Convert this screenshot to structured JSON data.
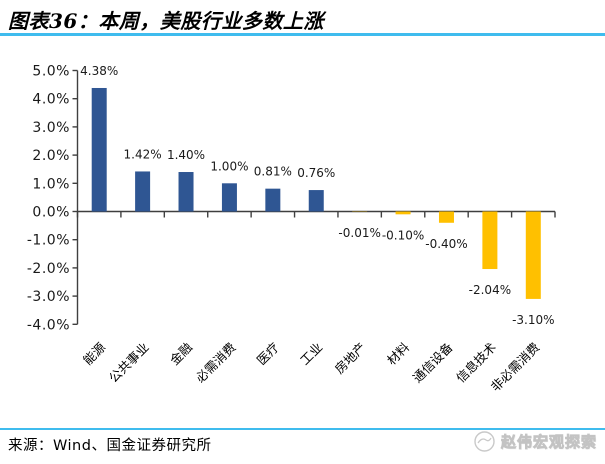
{
  "header": {
    "title": "图表36：本周，美股行业多数上涨"
  },
  "colors": {
    "positive_bar": "#2F5693",
    "negative_bar": "#FFC000",
    "rule_blue": "#3FBCEE",
    "axis": "#3f3f3f",
    "label_text": "#1a1a1a"
  },
  "chart_data": {
    "type": "bar",
    "title": "本周，美股行业多数上涨",
    "categories": [
      "能源",
      "公共事业",
      "金融",
      "必需消费",
      "医疗",
      "工业",
      "房地产",
      "材料",
      "通信设备",
      "信息技术",
      "非必需消费"
    ],
    "values": [
      4.38,
      1.42,
      1.4,
      1.0,
      0.81,
      0.76,
      -0.01,
      -0.1,
      -0.4,
      -2.04,
      -3.1
    ],
    "value_labels": [
      "4.38%",
      "1.42%",
      "1.40%",
      "1.00%",
      "0.81%",
      "0.76%",
      "-0.01%",
      "-0.10%",
      "-0.40%",
      "-2.04%",
      "-3.10%"
    ],
    "y_tick_values": [
      5,
      4,
      3,
      2,
      1,
      0,
      -1,
      -2,
      -3,
      -4
    ],
    "y_tick_labels": [
      "5.0%",
      "4.0%",
      "3.0%",
      "2.0%",
      "1.0%",
      "0.0%",
      "-1.0%",
      "-2.0%",
      "-3.0%",
      "-4.0%"
    ],
    "ylim": [
      -4,
      5
    ],
    "xlabel": "",
    "ylabel": "",
    "grid": false,
    "legend": false
  },
  "footer": {
    "source": "来源：Wind、国金证券研究所",
    "watermark": "赵伟宏观探索"
  }
}
